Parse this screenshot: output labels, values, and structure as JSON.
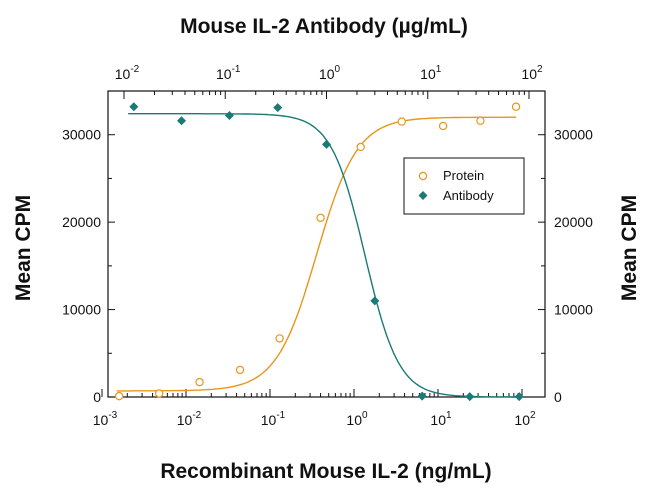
{
  "chart_data": {
    "type": "scatter",
    "title": "Mouse IL-2 Antibody (µg/mL)",
    "xlabel": "Recombinant Mouse IL-2 (ng/mL)",
    "ylabel": "Mean CPM",
    "ylabel_right": "Mean CPM",
    "x_scale": "log",
    "xlim": [
      0.001,
      100
    ],
    "x_tick_labels": [
      {
        "value": 0.001,
        "base": "10",
        "exp": "-3"
      },
      {
        "value": 0.01,
        "base": "10",
        "exp": "-2"
      },
      {
        "value": 0.1,
        "base": "10",
        "exp": "-1"
      },
      {
        "value": 1,
        "base": "10",
        "exp": "0"
      },
      {
        "value": 10,
        "base": "10",
        "exp": "1"
      },
      {
        "value": 100,
        "base": "10",
        "exp": "2"
      }
    ],
    "top_x_scale": "log",
    "top_xlim": [
      0.01,
      100
    ],
    "top_x_tick_labels": [
      {
        "value": 0.01,
        "base": "10",
        "exp": "-2"
      },
      {
        "value": 0.1,
        "base": "10",
        "exp": "-1"
      },
      {
        "value": 1,
        "base": "10",
        "exp": "0"
      },
      {
        "value": 10,
        "base": "10",
        "exp": "1"
      },
      {
        "value": 100,
        "base": "10",
        "exp": "2"
      }
    ],
    "ylim": [
      0,
      35000
    ],
    "y_ticks": [
      {
        "value": 0,
        "label": "0"
      },
      {
        "value": 10000,
        "label": "10000"
      },
      {
        "value": 20000,
        "label": "20000"
      },
      {
        "value": 30000,
        "label": "30000"
      }
    ],
    "legend": {
      "position": "right-middle",
      "entries": [
        "Protein",
        "Antibody"
      ]
    },
    "series": [
      {
        "name": "Protein",
        "axis": "bottom",
        "marker": "open-circle",
        "color": "#E8961C",
        "points": [
          {
            "x": 0.0016,
            "y": 100
          },
          {
            "x": 0.0048,
            "y": 400
          },
          {
            "x": 0.0145,
            "y": 1700
          },
          {
            "x": 0.044,
            "y": 3100
          },
          {
            "x": 0.13,
            "y": 6700
          },
          {
            "x": 0.4,
            "y": 20500
          },
          {
            "x": 1.2,
            "y": 28600
          },
          {
            "x": 3.7,
            "y": 31500
          },
          {
            "x": 11.5,
            "y": 31000
          },
          {
            "x": 32,
            "y": 31600
          },
          {
            "x": 85,
            "y": 33200
          }
        ],
        "fit": {
          "model": "4PL",
          "bottom": 700,
          "top": 32000,
          "ec50": 0.36,
          "hill": 1.8
        }
      },
      {
        "name": "Antibody",
        "axis": "top",
        "marker": "filled-diamond",
        "color": "#1A7A78",
        "points": [
          {
            "x": 0.0125,
            "y": 33200
          },
          {
            "x": 0.037,
            "y": 31600
          },
          {
            "x": 0.11,
            "y": 32200
          },
          {
            "x": 0.33,
            "y": 33100
          },
          {
            "x": 1.0,
            "y": 28900
          },
          {
            "x": 3.0,
            "y": 11000
          },
          {
            "x": 8.8,
            "y": 100
          },
          {
            "x": 26,
            "y": 50
          },
          {
            "x": 80,
            "y": 50
          }
        ],
        "fit": {
          "model": "4PL",
          "bottom": 0,
          "top": 32400,
          "ec50": 2.4,
          "hill": 2.6
        }
      }
    ]
  }
}
